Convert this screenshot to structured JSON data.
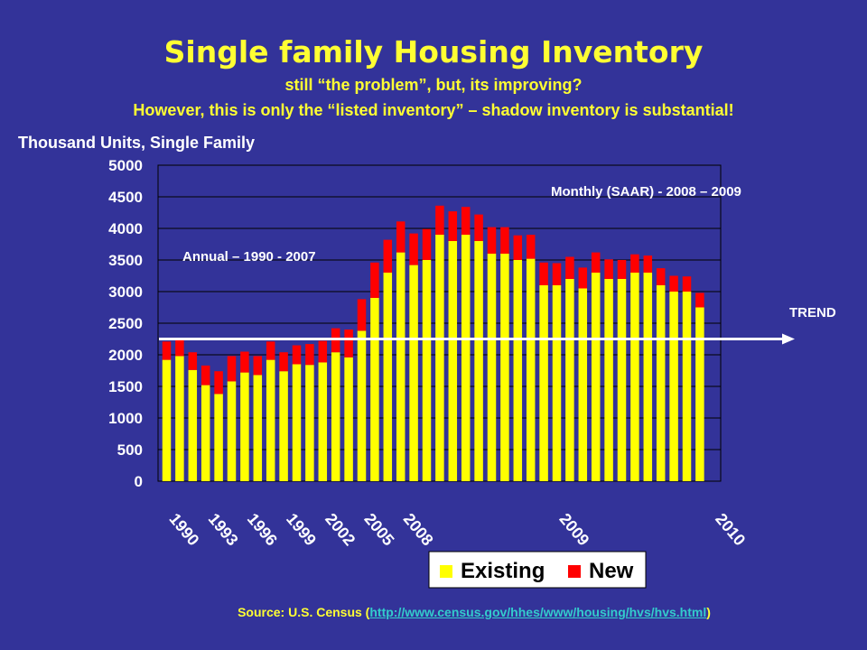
{
  "header": {
    "title": "Single family Housing Inventory",
    "subtitle1": "still “the problem”, but, its improving?",
    "subtitle2": "However, this is only the “listed inventory” – shadow inventory is substantial!"
  },
  "footer": {
    "prefix": "Source: U.S. Census (",
    "link": "http://www.census.gov/hhes/www/housing/hvs/hvs.html",
    "suffix": ")"
  },
  "colors": {
    "background": "#333399",
    "plot_area": "#333399",
    "existing": "#ffff00",
    "new": "#ff0000",
    "text": "#ffffff",
    "title": "#ffff33",
    "link": "#33cccc"
  },
  "chart_data": {
    "type": "bar",
    "stacked": true,
    "ylabel": "Thousand Units, Single Family",
    "ylim": [
      0,
      5000
    ],
    "yticks": [
      0,
      500,
      1000,
      1500,
      2000,
      2500,
      3000,
      3500,
      4000,
      4500,
      5000
    ],
    "grid": true,
    "xtick_labels": [
      {
        "label": "1990",
        "bar_index": 0
      },
      {
        "label": "1993",
        "bar_index": 3
      },
      {
        "label": "1996",
        "bar_index": 6
      },
      {
        "label": "1999",
        "bar_index": 9
      },
      {
        "label": "2002",
        "bar_index": 12
      },
      {
        "label": "2005",
        "bar_index": 15
      },
      {
        "label": "2008",
        "bar_index": 18
      },
      {
        "label": "2009",
        "bar_index": 30
      },
      {
        "label": "2010",
        "bar_index": 42
      }
    ],
    "series": [
      {
        "name": "Existing",
        "color": "#ffff00",
        "values": [
          1920,
          1980,
          1760,
          1520,
          1380,
          1580,
          1720,
          1680,
          1920,
          1740,
          1850,
          1840,
          1880,
          2040,
          1960,
          2380,
          2900,
          3300,
          3620,
          3420,
          3500,
          3900,
          3800,
          3900,
          3800,
          3600,
          3600,
          3500,
          3520,
          3100,
          3100,
          3200,
          3050,
          3300,
          3200,
          3200,
          3300,
          3300,
          3100,
          3000,
          3000,
          2750
        ]
      },
      {
        "name": "New",
        "color": "#ff0000",
        "values": [
          290,
          250,
          280,
          310,
          360,
          400,
          330,
          300,
          290,
          300,
          300,
          330,
          340,
          380,
          440,
          500,
          560,
          520,
          490,
          500,
          490,
          460,
          470,
          440,
          420,
          420,
          420,
          390,
          380,
          360,
          350,
          350,
          330,
          320,
          310,
          300,
          290,
          270,
          270,
          250,
          240,
          230
        ]
      }
    ],
    "annotations": [
      {
        "text": "Annual – 1990 - 2007"
      },
      {
        "text": "Monthly (SAAR) - 2008 – 2009"
      },
      {
        "text": "TREND",
        "y": 2250
      }
    ],
    "legend": {
      "placement": "bottom-center",
      "entries": [
        "Existing",
        "New"
      ]
    }
  }
}
